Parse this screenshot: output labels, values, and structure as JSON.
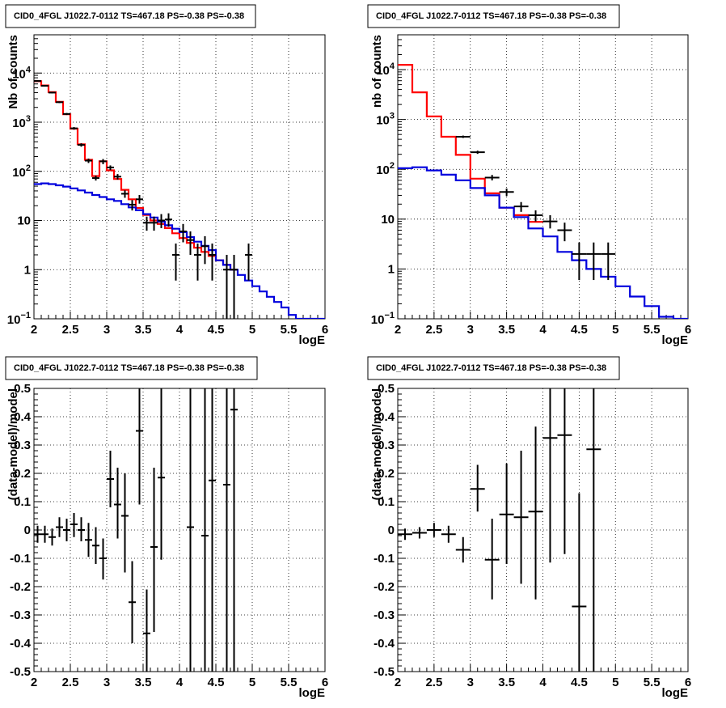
{
  "colors": {
    "model_total": "#ff0000",
    "model_component": "#0000dd",
    "data": "#000000",
    "grid": "#000000",
    "background": "#ffffff"
  },
  "chart_data": [
    {
      "type": "line",
      "title": "CID0_4FGL J1022.7-0112 TS=467.18 PS=-0.38 PS=-0.38",
      "xlabel": "logE",
      "ylabel": "Nb of counts",
      "xscale": "linear",
      "yscale": "log",
      "xlim": [
        2,
        6
      ],
      "ylim": [
        0.1,
        60000
      ],
      "xticks": [
        "2",
        "2.5",
        "3",
        "3.5",
        "4",
        "4.5",
        "5",
        "5.5",
        "6"
      ],
      "yticks": [
        {
          "v": 0.1,
          "base": "10",
          "exp": "−1"
        },
        {
          "v": 1,
          "label": "1"
        },
        {
          "v": 10,
          "label": "10"
        },
        {
          "v": 100,
          "base": "10",
          "exp": "2"
        },
        {
          "v": 1000,
          "base": "10",
          "exp": "3"
        },
        {
          "v": 10000,
          "base": "10",
          "exp": "4"
        }
      ],
      "grid": true,
      "bin_edges": [
        2,
        2.1,
        2.2,
        2.3,
        2.4,
        2.5,
        2.6,
        2.7,
        2.8,
        2.9,
        3,
        3.1,
        3.2,
        3.3,
        3.4,
        3.5,
        3.6,
        3.7,
        3.8,
        3.9,
        4,
        4.1,
        4.2,
        4.3,
        4.4,
        4.5,
        4.6,
        4.7,
        4.8,
        4.9,
        5,
        5.1,
        5.2,
        5.3,
        5.4,
        5.5,
        5.6,
        5.7,
        5.8,
        5.9,
        6
      ],
      "series": [
        {
          "role": "model_total",
          "values": [
            6800,
            5600,
            4100,
            2600,
            1450,
            740,
            355,
            172,
            80,
            160,
            105,
            70,
            42,
            27,
            18,
            13,
            10,
            8.5,
            7,
            5.5,
            4.4,
            3.5,
            2.8,
            2.3,
            1.9,
            1.55,
            1.25,
            1.0
          ]
        },
        {
          "role": "model_component",
          "values": [
            55,
            57,
            55,
            52,
            49,
            45,
            41,
            37,
            33,
            30,
            27,
            25,
            21.5,
            18.5,
            16.2,
            13.5,
            11.5,
            9.5,
            8,
            6.8,
            5.8,
            4.6,
            3.7,
            3.05,
            2.5,
            1.55,
            1.25,
            1.0,
            0.78,
            0.6,
            0.46,
            0.36,
            0.28,
            0.22,
            0.17,
            0.12,
            0.1,
            0.1,
            0.1,
            0.1
          ]
        },
        {
          "role": "data",
          "points": [
            {
              "x": 2.05,
              "y": 6900,
              "lo": 6700,
              "hi": 7100
            },
            {
              "x": 2.15,
              "y": 5500,
              "lo": 5300,
              "hi": 5700
            },
            {
              "x": 2.25,
              "y": 4000,
              "lo": 3850,
              "hi": 4150
            },
            {
              "x": 2.35,
              "y": 2550,
              "lo": 2450,
              "hi": 2650
            },
            {
              "x": 2.45,
              "y": 1470,
              "lo": 1400,
              "hi": 1540
            },
            {
              "x": 2.55,
              "y": 750,
              "lo": 705,
              "hi": 795
            },
            {
              "x": 2.65,
              "y": 345,
              "lo": 318,
              "hi": 372
            },
            {
              "x": 2.75,
              "y": 165,
              "lo": 148,
              "hi": 182
            },
            {
              "x": 2.85,
              "y": 73,
              "lo": 65,
              "hi": 82
            },
            {
              "x": 2.95,
              "y": 160,
              "lo": 140,
              "hi": 178
            },
            {
              "x": 3.05,
              "y": 120,
              "lo": 106,
              "hi": 132
            },
            {
              "x": 3.15,
              "y": 78,
              "lo": 68,
              "hi": 88
            },
            {
              "x": 3.25,
              "y": 35,
              "lo": 29,
              "hi": 41
            },
            {
              "x": 3.35,
              "y": 21,
              "lo": 16,
              "hi": 26
            },
            {
              "x": 3.45,
              "y": 27,
              "lo": 22,
              "hi": 33
            },
            {
              "x": 3.55,
              "y": 9,
              "lo": 6.2,
              "hi": 12
            },
            {
              "x": 3.65,
              "y": 9,
              "lo": 6.2,
              "hi": 12
            },
            {
              "x": 3.75,
              "y": 10,
              "lo": 7,
              "hi": 13.5
            },
            {
              "x": 3.85,
              "y": 10.5,
              "lo": 7.5,
              "hi": 14
            },
            {
              "x": 3.95,
              "y": 2,
              "lo": 0.6,
              "hi": 3.4
            },
            {
              "x": 4.05,
              "y": 6,
              "lo": 3.6,
              "hi": 8.5
            },
            {
              "x": 4.15,
              "y": 4,
              "lo": 2,
              "hi": 6
            },
            {
              "x": 4.25,
              "y": 2,
              "lo": 0.6,
              "hi": 3.4
            },
            {
              "x": 4.35,
              "y": 3,
              "lo": 1.3,
              "hi": 4.8
            },
            {
              "x": 4.45,
              "y": 2,
              "lo": 0.6,
              "hi": 3.4
            },
            {
              "x": 4.65,
              "y": 1,
              "lo": 0.1,
              "hi": 2
            },
            {
              "x": 4.75,
              "y": 1,
              "lo": 0.1,
              "hi": 2
            },
            {
              "x": 4.95,
              "y": 2,
              "lo": 0.6,
              "hi": 3.4
            }
          ]
        }
      ]
    },
    {
      "type": "line",
      "title": "CID0_4FGL J1022.7-0112 TS=467.18 PS=-0.38 PS=-0.38",
      "xlabel": "logE",
      "ylabel": "nb of counts",
      "xscale": "linear",
      "yscale": "log",
      "xlim": [
        2,
        6
      ],
      "ylim": [
        0.1,
        50000
      ],
      "xticks": [
        "2",
        "2.5",
        "3",
        "3.5",
        "4",
        "4.5",
        "5",
        "5.5",
        "6"
      ],
      "yticks": [
        {
          "v": 0.1,
          "base": "10",
          "exp": "−1"
        },
        {
          "v": 1,
          "label": "1"
        },
        {
          "v": 10,
          "label": "10"
        },
        {
          "v": 100,
          "base": "10",
          "exp": "2"
        },
        {
          "v": 1000,
          "base": "10",
          "exp": "3"
        },
        {
          "v": 10000,
          "base": "10",
          "exp": "4"
        }
      ],
      "grid": true,
      "bin_edges": [
        2,
        2.2,
        2.4,
        2.6,
        2.8,
        3,
        3.2,
        3.4,
        3.6,
        3.8,
        4,
        4.2,
        4.4,
        4.6,
        4.8,
        5,
        5.2,
        5.4,
        5.6,
        5.8,
        6
      ],
      "series": [
        {
          "role": "model_total",
          "values": [
            12500,
            3500,
            1150,
            450,
            195,
            65,
            33,
            17,
            12,
            8.8
          ]
        },
        {
          "role": "model_component",
          "values": [
            105,
            110,
            95,
            78,
            60,
            42,
            30,
            17,
            11,
            6.5,
            4.5,
            2.2,
            1.5,
            1.0,
            0.7,
            0.45,
            0.28,
            0.18,
            0.11,
            0.1
          ]
        },
        {
          "role": "data",
          "points": [
            {
              "x": 2.9,
              "y": 450,
              "lo": 425,
              "hi": 475
            },
            {
              "x": 3.1,
              "y": 220,
              "lo": 204,
              "hi": 236
            },
            {
              "x": 3.3,
              "y": 68,
              "lo": 60,
              "hi": 77
            },
            {
              "x": 3.5,
              "y": 35,
              "lo": 29,
              "hi": 41
            },
            {
              "x": 3.7,
              "y": 18,
              "lo": 14,
              "hi": 22
            },
            {
              "x": 3.9,
              "y": 12,
              "lo": 9,
              "hi": 15
            },
            {
              "x": 4.1,
              "y": 9,
              "lo": 6.5,
              "hi": 12
            },
            {
              "x": 4.3,
              "y": 6,
              "lo": 3.6,
              "hi": 8.5
            },
            {
              "x": 4.5,
              "y": 2,
              "lo": 0.6,
              "hi": 3.4
            },
            {
              "x": 4.7,
              "y": 2,
              "lo": 0.6,
              "hi": 3.4
            },
            {
              "x": 4.9,
              "y": 2,
              "lo": 0.6,
              "hi": 3.4
            }
          ]
        }
      ]
    },
    {
      "type": "scatter",
      "title": "CID0_4FGL J1022.7-0112 TS=467.18 PS=-0.38 PS=-0.38",
      "xlabel": "logE",
      "ylabel": "(data-model)/model",
      "xscale": "linear",
      "yscale": "linear",
      "xlim": [
        2,
        6
      ],
      "ylim": [
        -0.5,
        0.5
      ],
      "xticks": [
        "2",
        "2.5",
        "3",
        "3.5",
        "4",
        "4.5",
        "5",
        "5.5",
        "6"
      ],
      "yticks": [
        "-0.5",
        "-0.4",
        "-0.3",
        "-0.2",
        "-0.1",
        "0",
        "0.1",
        "0.2",
        "0.3",
        "0.4",
        "0.5"
      ],
      "grid": true,
      "xerr": 0.05,
      "points": [
        {
          "x": 2.05,
          "y": -0.015,
          "lo": -0.045,
          "hi": 0.015
        },
        {
          "x": 2.15,
          "y": -0.015,
          "lo": -0.045,
          "hi": 0.015
        },
        {
          "x": 2.25,
          "y": -0.025,
          "lo": -0.055,
          "hi": 0.005
        },
        {
          "x": 2.35,
          "y": 0.01,
          "lo": -0.025,
          "hi": 0.045
        },
        {
          "x": 2.45,
          "y": 0.0,
          "lo": -0.04,
          "hi": 0.04
        },
        {
          "x": 2.55,
          "y": 0.02,
          "lo": -0.025,
          "hi": 0.06
        },
        {
          "x": 2.65,
          "y": 0.0,
          "lo": -0.04,
          "hi": 0.045
        },
        {
          "x": 2.75,
          "y": -0.035,
          "lo": -0.095,
          "hi": 0.025
        },
        {
          "x": 2.85,
          "y": -0.055,
          "lo": -0.12,
          "hi": 0.01
        },
        {
          "x": 2.95,
          "y": -0.1,
          "lo": -0.175,
          "hi": -0.03
        },
        {
          "x": 3.05,
          "y": 0.18,
          "lo": 0.08,
          "hi": 0.28
        },
        {
          "x": 3.15,
          "y": 0.09,
          "lo": -0.03,
          "hi": 0.22
        },
        {
          "x": 3.25,
          "y": 0.05,
          "lo": -0.15,
          "hi": 0.2
        },
        {
          "x": 3.35,
          "y": -0.255,
          "lo": -0.4,
          "hi": -0.11
        },
        {
          "x": 3.45,
          "y": 0.35,
          "lo": 0.09,
          "hi": 0.5
        },
        {
          "x": 3.55,
          "y": -0.365,
          "lo": -0.5,
          "hi": -0.21
        },
        {
          "x": 3.65,
          "y": -0.06,
          "lo": -0.36,
          "hi": 0.22
        },
        {
          "x": 3.75,
          "y": 0.185,
          "lo": -0.105,
          "hi": 0.5
        },
        {
          "x": 4.15,
          "y": 0.01,
          "lo": -0.5,
          "hi": 0.5
        },
        {
          "x": 4.35,
          "y": -0.02,
          "lo": -0.5,
          "hi": 0.5
        },
        {
          "x": 4.45,
          "y": 0.175,
          "lo": -0.5,
          "hi": 0.5
        },
        {
          "x": 4.65,
          "y": 0.16,
          "lo": -0.5,
          "hi": 0.5
        },
        {
          "x": 4.75,
          "y": 0.425,
          "lo": -0.5,
          "hi": 0.5
        }
      ]
    },
    {
      "type": "scatter",
      "title": "CID0_4FGL J1022.7-0112 TS=467.18 PS=-0.38 PS=-0.38",
      "xlabel": "logE",
      "ylabel": "(data-model)/model",
      "xscale": "linear",
      "yscale": "linear",
      "xlim": [
        2,
        6
      ],
      "ylim": [
        -0.5,
        0.5
      ],
      "xticks": [
        "2",
        "2.5",
        "3",
        "3.5",
        "4",
        "4.5",
        "5",
        "5.5",
        "6"
      ],
      "yticks": [
        "-0.5",
        "-0.4",
        "-0.3",
        "-0.2",
        "-0.1",
        "0",
        "0.1",
        "0.2",
        "0.3",
        "0.4",
        "0.5"
      ],
      "grid": true,
      "xerr": 0.1,
      "points": [
        {
          "x": 2.1,
          "y": -0.015,
          "lo": -0.035,
          "hi": 0.005
        },
        {
          "x": 2.3,
          "y": -0.01,
          "lo": -0.03,
          "hi": 0.01
        },
        {
          "x": 2.5,
          "y": 0.0,
          "lo": -0.025,
          "hi": 0.025
        },
        {
          "x": 2.7,
          "y": -0.015,
          "lo": -0.045,
          "hi": 0.015
        },
        {
          "x": 2.9,
          "y": -0.07,
          "lo": -0.115,
          "hi": -0.025
        },
        {
          "x": 3.1,
          "y": 0.145,
          "lo": 0.065,
          "hi": 0.23
        },
        {
          "x": 3.3,
          "y": -0.105,
          "lo": -0.245,
          "hi": 0.04
        },
        {
          "x": 3.5,
          "y": 0.055,
          "lo": -0.12,
          "hi": 0.235
        },
        {
          "x": 3.7,
          "y": 0.045,
          "lo": -0.19,
          "hi": 0.28
        },
        {
          "x": 3.9,
          "y": 0.065,
          "lo": -0.245,
          "hi": 0.365
        },
        {
          "x": 4.1,
          "y": 0.325,
          "lo": -0.115,
          "hi": 0.5
        },
        {
          "x": 4.3,
          "y": 0.335,
          "lo": -0.085,
          "hi": 0.5
        },
        {
          "x": 4.5,
          "y": -0.27,
          "lo": -0.5,
          "hi": 0.13
        },
        {
          "x": 4.7,
          "y": 0.285,
          "lo": -0.5,
          "hi": 0.5
        }
      ]
    }
  ]
}
